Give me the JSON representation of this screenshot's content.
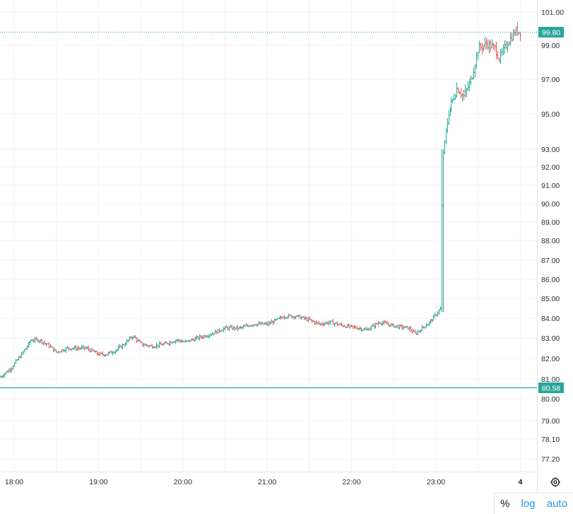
{
  "chart_data": {
    "type": "bar",
    "subtype": "ohlc",
    "yaxis": {
      "ticks": [
        "101.00",
        "99.00",
        "97.00",
        "95.00",
        "93.00",
        "92.00",
        "91.00",
        "90.00",
        "89.00",
        "88.00",
        "87.00",
        "86.00",
        "85.00",
        "84.00",
        "83.00",
        "82.00",
        "81.00",
        "80.00",
        "79.00",
        "78.10",
        "77.20"
      ],
      "tick_values": [
        101.0,
        99.0,
        97.0,
        95.0,
        93.0,
        92.0,
        91.0,
        90.0,
        89.0,
        88.0,
        87.0,
        86.0,
        85.0,
        84.0,
        83.0,
        82.0,
        81.0,
        80.0,
        79.0,
        78.1,
        77.2
      ]
    },
    "xaxis": {
      "ticks": [
        "18:00",
        "19:00",
        "20:00",
        "21:00",
        "22:00",
        "23:00",
        "4"
      ],
      "tick_hours": [
        18,
        19,
        20,
        21,
        22,
        23,
        24
      ]
    },
    "x_range_hours": [
      17.83,
      24.0
    ],
    "last_price": {
      "label": "99.80",
      "value": 99.8,
      "color": "#26a69a",
      "line_style": "dotted"
    },
    "reference_price": {
      "label": "80.58",
      "value": 80.58,
      "color": "#0097a7",
      "line_style": "solid"
    },
    "colors": {
      "up": "#26a69a",
      "down": "#ef5350",
      "grid": "#f0f3fa",
      "tag": "#26a69a"
    },
    "series": [
      {
        "path": [
          [
            17.83,
            81.1
          ],
          [
            17.95,
            81.5
          ],
          [
            18.08,
            82.2
          ],
          [
            18.2,
            82.9
          ],
          [
            18.3,
            82.9
          ],
          [
            18.42,
            82.6
          ],
          [
            18.5,
            82.3
          ],
          [
            18.62,
            82.5
          ],
          [
            18.75,
            82.5
          ],
          [
            18.85,
            82.5
          ],
          [
            19.0,
            82.2
          ],
          [
            19.08,
            82.2
          ],
          [
            19.2,
            82.4
          ],
          [
            19.3,
            82.7
          ],
          [
            19.4,
            83.1
          ],
          [
            19.5,
            82.7
          ],
          [
            19.62,
            82.6
          ],
          [
            19.78,
            82.7
          ],
          [
            19.92,
            82.9
          ],
          [
            20.03,
            82.8
          ],
          [
            20.17,
            83.0
          ],
          [
            20.33,
            83.2
          ],
          [
            20.5,
            83.5
          ],
          [
            20.67,
            83.5
          ],
          [
            20.83,
            83.7
          ],
          [
            21.0,
            83.7
          ],
          [
            21.2,
            84.1
          ],
          [
            21.33,
            84.1
          ],
          [
            21.5,
            83.9
          ],
          [
            21.62,
            83.7
          ],
          [
            21.75,
            83.8
          ],
          [
            21.83,
            83.7
          ],
          [
            21.92,
            83.6
          ],
          [
            22.08,
            83.5
          ],
          [
            22.17,
            83.4
          ],
          [
            22.33,
            83.8
          ],
          [
            22.5,
            83.6
          ],
          [
            22.67,
            83.5
          ],
          [
            22.75,
            83.2
          ],
          [
            22.83,
            83.5
          ],
          [
            22.92,
            83.8
          ],
          [
            23.05,
            84.5
          ],
          [
            23.07,
            92.5
          ],
          [
            23.15,
            95.2
          ],
          [
            23.25,
            96.5
          ],
          [
            23.33,
            96.0
          ],
          [
            23.42,
            97.0
          ],
          [
            23.5,
            98.8
          ],
          [
            23.6,
            99.1
          ],
          [
            23.7,
            98.8
          ],
          [
            23.75,
            98.2
          ],
          [
            23.85,
            99.2
          ],
          [
            23.95,
            99.9
          ],
          [
            24.0,
            99.8
          ]
        ]
      }
    ]
  },
  "controls": {
    "percent_label": "%",
    "log_label": "log",
    "auto_label": "auto",
    "settings_icon": "gear-icon"
  }
}
